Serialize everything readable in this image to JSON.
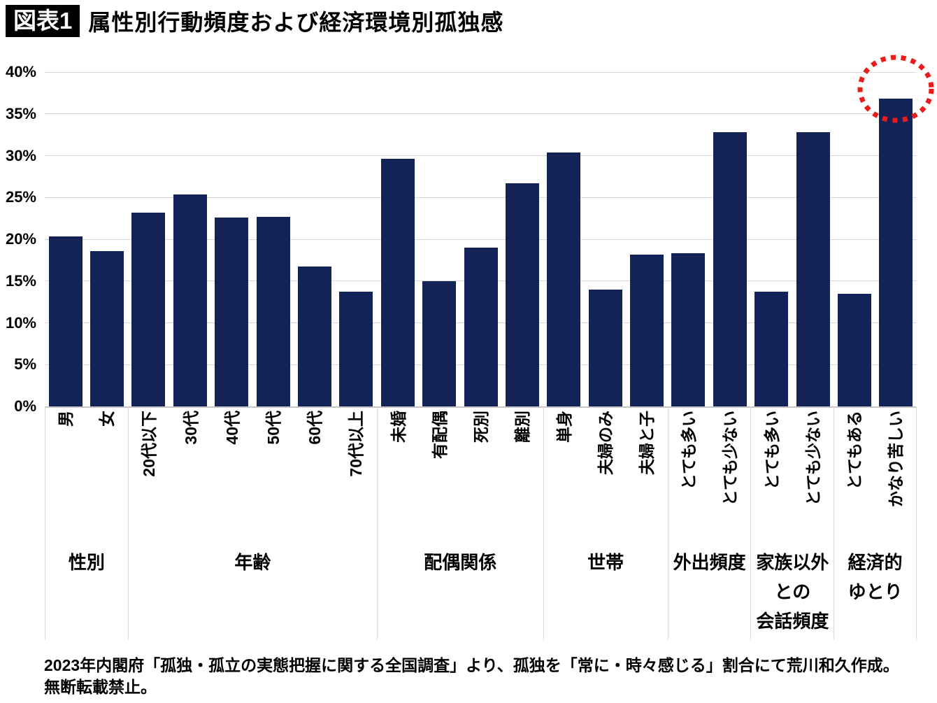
{
  "header": {
    "badge": "図表1",
    "title": "属性別行動頻度および経済環境別孤独感"
  },
  "chart_data": {
    "type": "bar",
    "title": "属性別行動頻度および経済環境別孤独感",
    "ylabel": "",
    "xlabel": "",
    "ylim": [
      0,
      40
    ],
    "ytick_step": 5,
    "ytick_labels": [
      "0%",
      "5%",
      "10%",
      "15%",
      "20%",
      "25%",
      "30%",
      "35%",
      "40%"
    ],
    "grid": "horizontal",
    "legend": "none",
    "bar_color": "#132257",
    "gridline_color": "#d9d9d9",
    "groups": [
      {
        "label": "性別",
        "bars": [
          {
            "label": "男",
            "value": 20.3
          },
          {
            "label": "女",
            "value": 18.6
          }
        ]
      },
      {
        "label": "年齢",
        "bars": [
          {
            "label": "20代以下",
            "value": 23.2
          },
          {
            "label": "30代",
            "value": 25.4
          },
          {
            "label": "40代",
            "value": 22.6
          },
          {
            "label": "50代",
            "value": 22.7
          },
          {
            "label": "60代",
            "value": 16.7
          },
          {
            "label": "70代以上",
            "value": 13.7
          }
        ]
      },
      {
        "label": "配偶関係",
        "bars": [
          {
            "label": "未婚",
            "value": 29.6
          },
          {
            "label": "有配偶",
            "value": 15.0
          },
          {
            "label": "死別",
            "value": 19.0
          },
          {
            "label": "離別",
            "value": 26.7
          }
        ]
      },
      {
        "label": "世帯",
        "bars": [
          {
            "label": "単身",
            "value": 30.4
          },
          {
            "label": "夫婦のみ",
            "value": 14.0
          },
          {
            "label": "夫婦と子",
            "value": 18.2
          }
        ]
      },
      {
        "label": "外出頻度",
        "bars": [
          {
            "label": "とても多い",
            "value": 18.3
          },
          {
            "label": "とても少ない",
            "value": 32.8
          }
        ]
      },
      {
        "label": "家族以外\nとの\n会話頻度",
        "bars": [
          {
            "label": "とても多い",
            "value": 13.7
          },
          {
            "label": "とても少ない",
            "value": 32.8
          }
        ]
      },
      {
        "label": "経済的\nゆとり",
        "bars": [
          {
            "label": "とてもある",
            "value": 13.5
          },
          {
            "label": "かなり苦しい",
            "value": 36.8
          }
        ]
      }
    ],
    "annotation": {
      "shape": "dashed-circle",
      "target_bar": "かなり苦しい",
      "color": "#e91c1c"
    }
  },
  "footnote": {
    "line1": "2023年内閣府「孤独・孤立の実態把握に関する全国調査」より、孤独を「常に・時々感じる」割合にて荒川和久作成。",
    "line2": "無断転載禁止。"
  }
}
